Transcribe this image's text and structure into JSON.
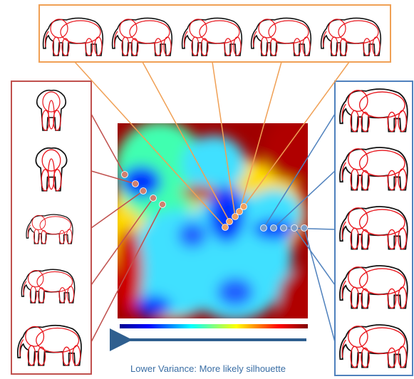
{
  "caption": "Lower Variance: More likely silhouette"
}
